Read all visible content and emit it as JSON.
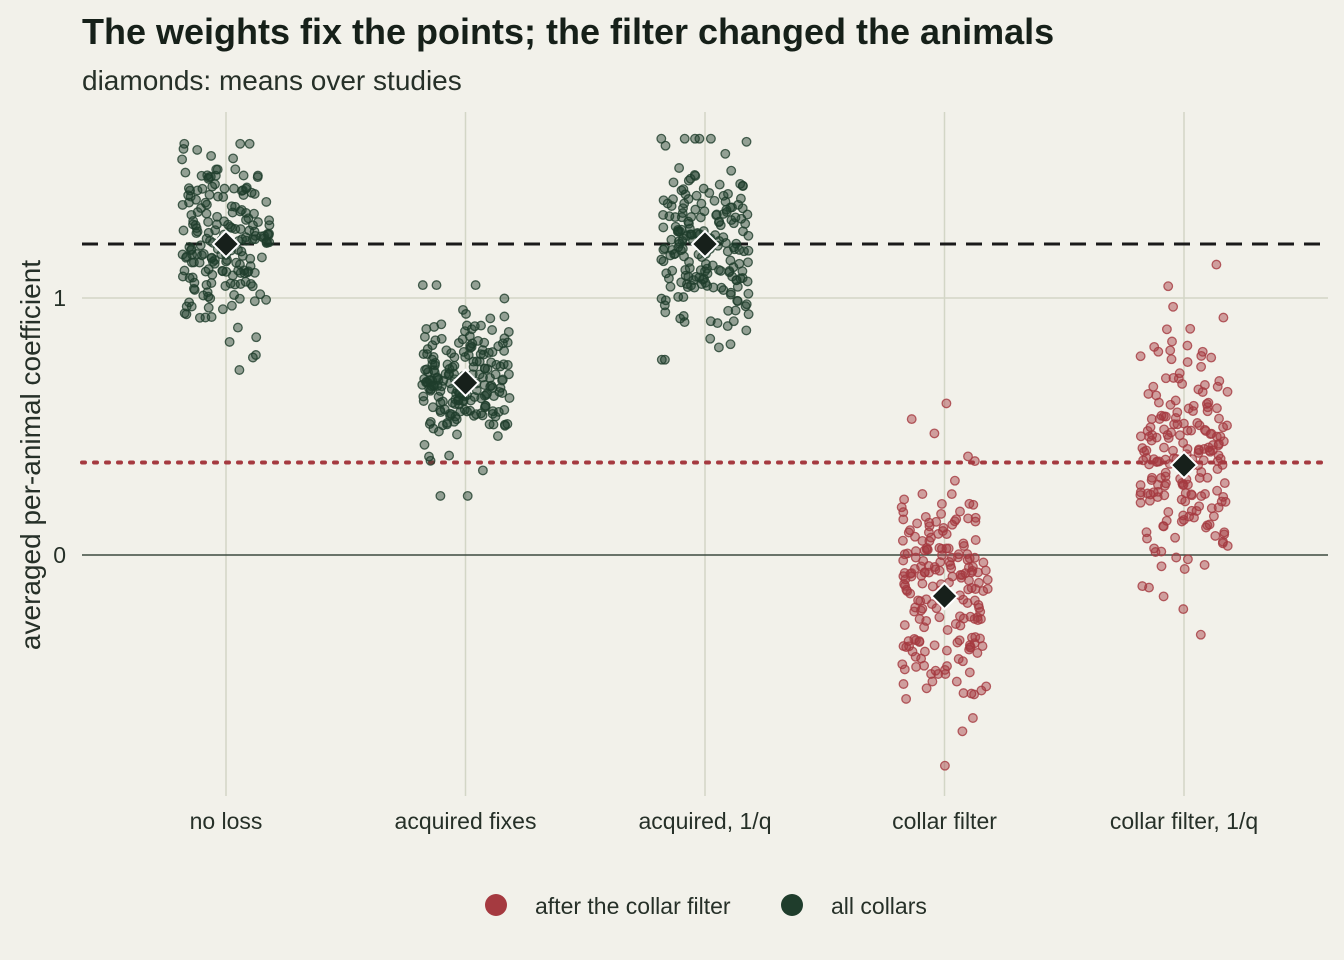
{
  "chart_data": {
    "type": "scatter",
    "title": "The weights fix the points; the filter changed the animals",
    "subtitle": "diamonds: means over studies",
    "xlabel": "",
    "ylabel": "averaged per-animal coefficient",
    "categories": [
      "no loss",
      "acquired fixes",
      "acquired, 1/q",
      "collar filter",
      "collar filter, 1/q"
    ],
    "ylim": [
      -0.93,
      1.72
    ],
    "yticks": [
      0,
      1
    ],
    "grid": true,
    "legend_position": "bottom",
    "reference_lines": [
      {
        "value": 1.21,
        "style": "dashed",
        "color": "#1a1a1a"
      },
      {
        "value": 0.36,
        "style": "dotted",
        "color": "#a53a40"
      }
    ],
    "series": [
      {
        "name": "after the collar filter",
        "color": "#a53a40",
        "categories": [
          "collar filter",
          "collar filter, 1/q"
        ]
      },
      {
        "name": "all collars",
        "color": "#1f3d2c",
        "categories": [
          "no loss",
          "acquired fixes",
          "acquired, 1/q"
        ]
      }
    ],
    "groups": [
      {
        "category": "no loss",
        "series": "all collars",
        "mean": 1.21,
        "sd": 0.17,
        "n": 200,
        "min": 0.72,
        "max": 1.6
      },
      {
        "category": "acquired fixes",
        "series": "all collars",
        "mean": 0.67,
        "sd": 0.15,
        "n": 200,
        "min": 0.23,
        "max": 1.05
      },
      {
        "category": "acquired, 1/q",
        "series": "all collars",
        "mean": 1.21,
        "sd": 0.17,
        "n": 200,
        "min": 0.76,
        "max": 1.62
      },
      {
        "category": "collar filter",
        "series": "after the collar filter",
        "mean": -0.16,
        "sd": 0.22,
        "n": 200,
        "min": -0.82,
        "max": 0.59
      },
      {
        "category": "collar filter, 1/q",
        "series": "after the collar filter",
        "mean": 0.35,
        "sd": 0.24,
        "n": 200,
        "min": -0.31,
        "max": 1.13
      }
    ]
  }
}
